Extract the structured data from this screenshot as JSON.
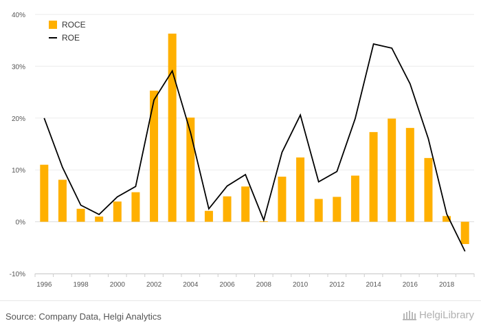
{
  "chart_data": {
    "type": "bar",
    "x": [
      "1996",
      "1997",
      "1998",
      "1999",
      "2000",
      "2001",
      "2002",
      "2003",
      "2004",
      "2005",
      "2006",
      "2007",
      "2008",
      "2009",
      "2010",
      "2011",
      "2012",
      "2013",
      "2014",
      "2015",
      "2016",
      "2017",
      "2018",
      "2019"
    ],
    "tick_labels": [
      "1996",
      "1998",
      "2000",
      "2002",
      "2004",
      "2006",
      "2008",
      "2010",
      "2012",
      "2014",
      "2016",
      "2018"
    ],
    "series": [
      {
        "name": "ROCE",
        "kind": "bar",
        "color": "#FFB000",
        "values": [
          11.0,
          8.1,
          2.5,
          1.0,
          3.9,
          5.7,
          25.3,
          36.3,
          20.1,
          2.1,
          4.9,
          6.8,
          0.1,
          8.7,
          12.4,
          4.4,
          4.8,
          8.9,
          17.3,
          19.9,
          18.1,
          12.3,
          1.1,
          -4.3
        ]
      },
      {
        "name": "ROE",
        "kind": "line",
        "color": "#000000",
        "values": [
          20.0,
          10.5,
          3.2,
          1.4,
          4.8,
          6.8,
          23.5,
          29.1,
          17.2,
          2.5,
          6.9,
          9.1,
          0.3,
          13.4,
          20.6,
          7.7,
          9.7,
          19.9,
          34.3,
          33.5,
          26.6,
          16.0,
          1.5,
          -5.7
        ]
      }
    ],
    "y_ticks": [
      "-10%",
      "0%",
      "10%",
      "20%",
      "30%",
      "40%"
    ],
    "y_tick_values": [
      -10,
      0,
      10,
      20,
      30,
      40
    ],
    "ylim": [
      -10,
      40
    ],
    "grid": true,
    "legend_position": "top-left"
  },
  "footer": {
    "source": "Source: Company Data, Helgi Analytics",
    "logo_text": "HelgiLibrary"
  }
}
